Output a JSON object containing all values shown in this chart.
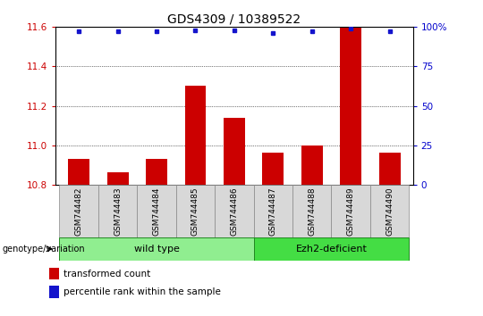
{
  "title": "GDS4309 / 10389522",
  "samples": [
    "GSM744482",
    "GSM744483",
    "GSM744484",
    "GSM744485",
    "GSM744486",
    "GSM744487",
    "GSM744488",
    "GSM744489",
    "GSM744490"
  ],
  "bar_values": [
    10.93,
    10.865,
    10.93,
    11.3,
    11.14,
    10.965,
    11.0,
    11.6,
    10.965
  ],
  "percentile_values": [
    97,
    97,
    97,
    98,
    98,
    96,
    97,
    99,
    97
  ],
  "ylim_left": [
    10.8,
    11.6
  ],
  "ylim_right": [
    0,
    100
  ],
  "yticks_left": [
    10.8,
    11.0,
    11.2,
    11.4,
    11.6
  ],
  "yticks_right": [
    0,
    25,
    50,
    75,
    100
  ],
  "bar_color": "#cc0000",
  "dot_color": "#1414cc",
  "bar_width": 0.55,
  "wt_color": "#90ee90",
  "ez_color": "#44dd44",
  "group_label": "genotype/variation",
  "legend_bar_label": "transformed count",
  "legend_dot_label": "percentile rank within the sample",
  "background_color": "#ffffff",
  "grid_color": "#000000",
  "tick_color_left": "#cc0000",
  "tick_color_right": "#0000cc",
  "title_fontsize": 10,
  "axis_fontsize": 7.5,
  "label_fontsize": 6.5,
  "legend_fontsize": 7.5,
  "group_fontsize": 8
}
